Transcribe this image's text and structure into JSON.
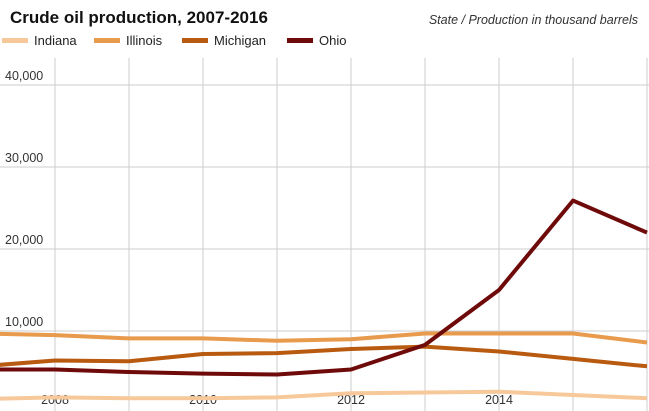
{
  "colors": {
    "Indiana": "#f7c99a",
    "Illinois": "#e89a4d",
    "Michigan": "#b85a10",
    "Ohio": "#6e0a0a",
    "grid": "#cccccc"
  },
  "chart_data": {
    "type": "line",
    "title": "Crude oil production, 2007-2016",
    "subtitle": "State / Production in thousand barrels",
    "xlabel": "",
    "ylabel": "",
    "x": [
      2007,
      2008,
      2009,
      2010,
      2011,
      2012,
      2013,
      2014,
      2015,
      2016
    ],
    "xlim": [
      2007,
      2016
    ],
    "ylim": [
      0,
      45000
    ],
    "yticks": [
      10000,
      20000,
      30000,
      40000
    ],
    "ytick_labels": [
      "10,000",
      "20,000",
      "30,000",
      "40,000"
    ],
    "xticks": [
      2008,
      2010,
      2012,
      2014
    ],
    "xtick_labels": [
      "2008",
      "2010",
      "2012",
      "2014"
    ],
    "legend_position": "top-left",
    "series": [
      {
        "name": "Indiana",
        "values": [
          1700,
          1900,
          1800,
          1800,
          1900,
          2400,
          2500,
          2600,
          2200,
          1800
        ]
      },
      {
        "name": "Illinois",
        "values": [
          9700,
          9500,
          9100,
          9100,
          8800,
          9000,
          9700,
          9700,
          9700,
          8600
        ]
      },
      {
        "name": "Michigan",
        "values": [
          5700,
          6400,
          6300,
          7200,
          7300,
          7800,
          8100,
          7500,
          6600,
          5700
        ]
      },
      {
        "name": "Ohio",
        "values": [
          5300,
          5300,
          5000,
          4800,
          4700,
          5300,
          8300,
          15000,
          25900,
          22000
        ]
      }
    ]
  }
}
